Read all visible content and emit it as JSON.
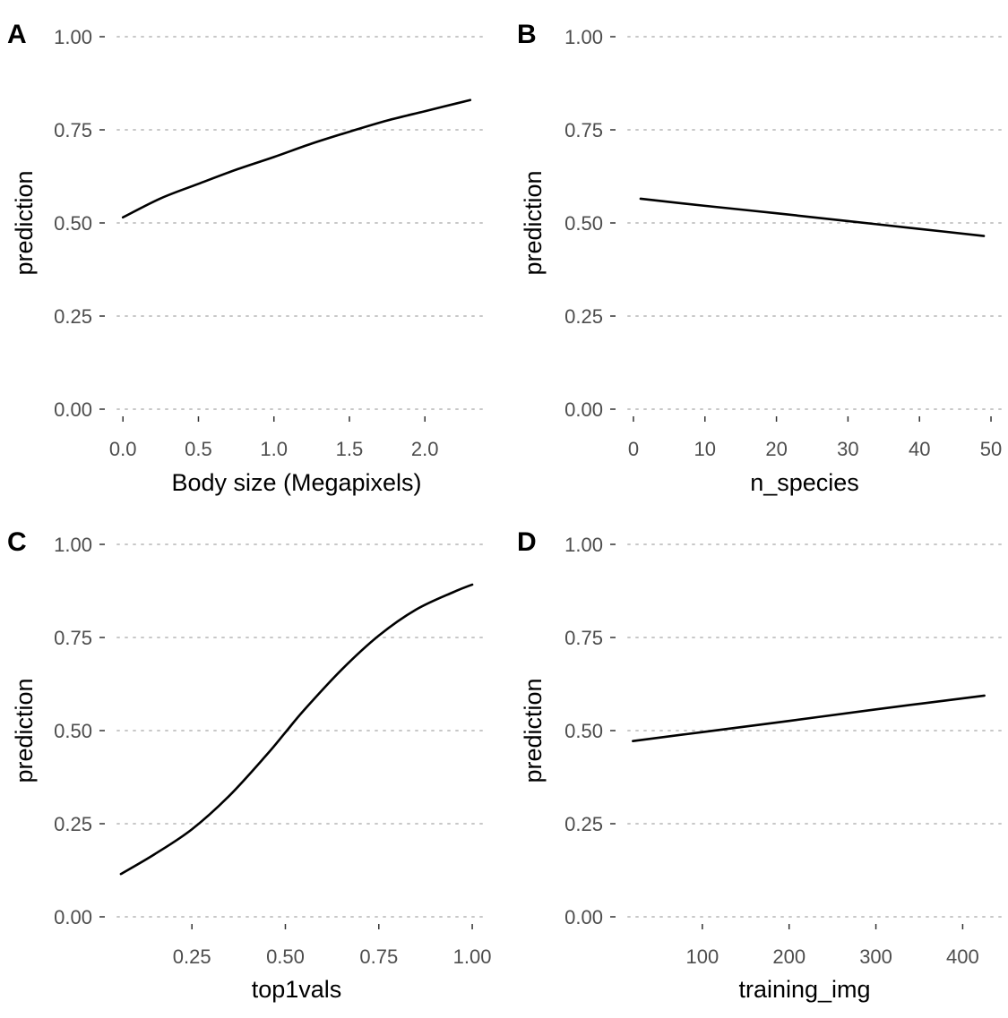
{
  "chart_data": [
    {
      "type": "line",
      "panel": "A",
      "xlabel": "Body size (Megapixels)",
      "ylabel": "prediction",
      "xlim": [
        -0.12,
        2.42
      ],
      "ylim": [
        0,
        1
      ],
      "xticks": [
        0.0,
        0.5,
        1.0,
        1.5,
        2.0
      ],
      "xtick_labels": [
        "0.0",
        "0.5",
        "1.0",
        "1.5",
        "2.0"
      ],
      "yticks": [
        0,
        0.25,
        0.5,
        0.75,
        1
      ],
      "ytick_labels": [
        "0.00",
        "0.25",
        "0.50",
        "0.75",
        "1.00"
      ],
      "grid": "horizontal dotted",
      "series": [
        {
          "x": [
            0.0,
            0.25,
            0.5,
            0.75,
            1.0,
            1.25,
            1.5,
            1.75,
            2.0,
            2.3
          ],
          "y": [
            0.515,
            0.566,
            0.605,
            0.643,
            0.677,
            0.713,
            0.745,
            0.775,
            0.8,
            0.83
          ]
        }
      ]
    },
    {
      "type": "line",
      "panel": "B",
      "xlabel": "n_species",
      "ylabel": "prediction",
      "xlim": [
        -2.5,
        51.5
      ],
      "ylim": [
        0,
        1
      ],
      "xticks": [
        0,
        10,
        20,
        30,
        40,
        50
      ],
      "xtick_labels": [
        "0",
        "10",
        "20",
        "30",
        "40",
        "50"
      ],
      "yticks": [
        0,
        0.25,
        0.5,
        0.75,
        1
      ],
      "ytick_labels": [
        "0.00",
        "0.25",
        "0.50",
        "0.75",
        "1.00"
      ],
      "grid": "horizontal dotted",
      "series": [
        {
          "x": [
            1,
            10,
            20,
            30,
            40,
            49
          ],
          "y": [
            0.565,
            0.546,
            0.526,
            0.505,
            0.484,
            0.465
          ]
        }
      ]
    },
    {
      "type": "line",
      "panel": "C",
      "xlabel": "top1vals",
      "ylabel": "prediction",
      "xlim": [
        0.017,
        1.043
      ],
      "ylim": [
        0,
        1
      ],
      "xticks": [
        0.25,
        0.5,
        0.75,
        1.0
      ],
      "xtick_labels": [
        "0.25",
        "0.50",
        "0.75",
        "1.00"
      ],
      "yticks": [
        0,
        0.25,
        0.5,
        0.75,
        1
      ],
      "ytick_labels": [
        "0.00",
        "0.25",
        "0.50",
        "0.75",
        "1.00"
      ],
      "grid": "horizontal dotted",
      "series": [
        {
          "x": [
            0.06,
            0.15,
            0.25,
            0.35,
            0.45,
            0.5,
            0.55,
            0.65,
            0.75,
            0.85,
            0.95,
            1.0
          ],
          "y": [
            0.115,
            0.168,
            0.235,
            0.325,
            0.435,
            0.495,
            0.555,
            0.663,
            0.755,
            0.825,
            0.872,
            0.892
          ]
        }
      ]
    },
    {
      "type": "line",
      "panel": "D",
      "xlabel": "training_img",
      "ylabel": "prediction",
      "xlim": [
        0,
        445
      ],
      "ylim": [
        0,
        1
      ],
      "xticks": [
        100,
        200,
        300,
        400
      ],
      "xtick_labels": [
        "100",
        "200",
        "300",
        "400"
      ],
      "yticks": [
        0,
        0.25,
        0.5,
        0.75,
        1
      ],
      "ytick_labels": [
        "0.00",
        "0.25",
        "0.50",
        "0.75",
        "1.00"
      ],
      "grid": "horizontal dotted",
      "series": [
        {
          "x": [
            20,
            100,
            200,
            300,
            425
          ],
          "y": [
            0.472,
            0.496,
            0.526,
            0.557,
            0.594
          ]
        }
      ]
    }
  ]
}
